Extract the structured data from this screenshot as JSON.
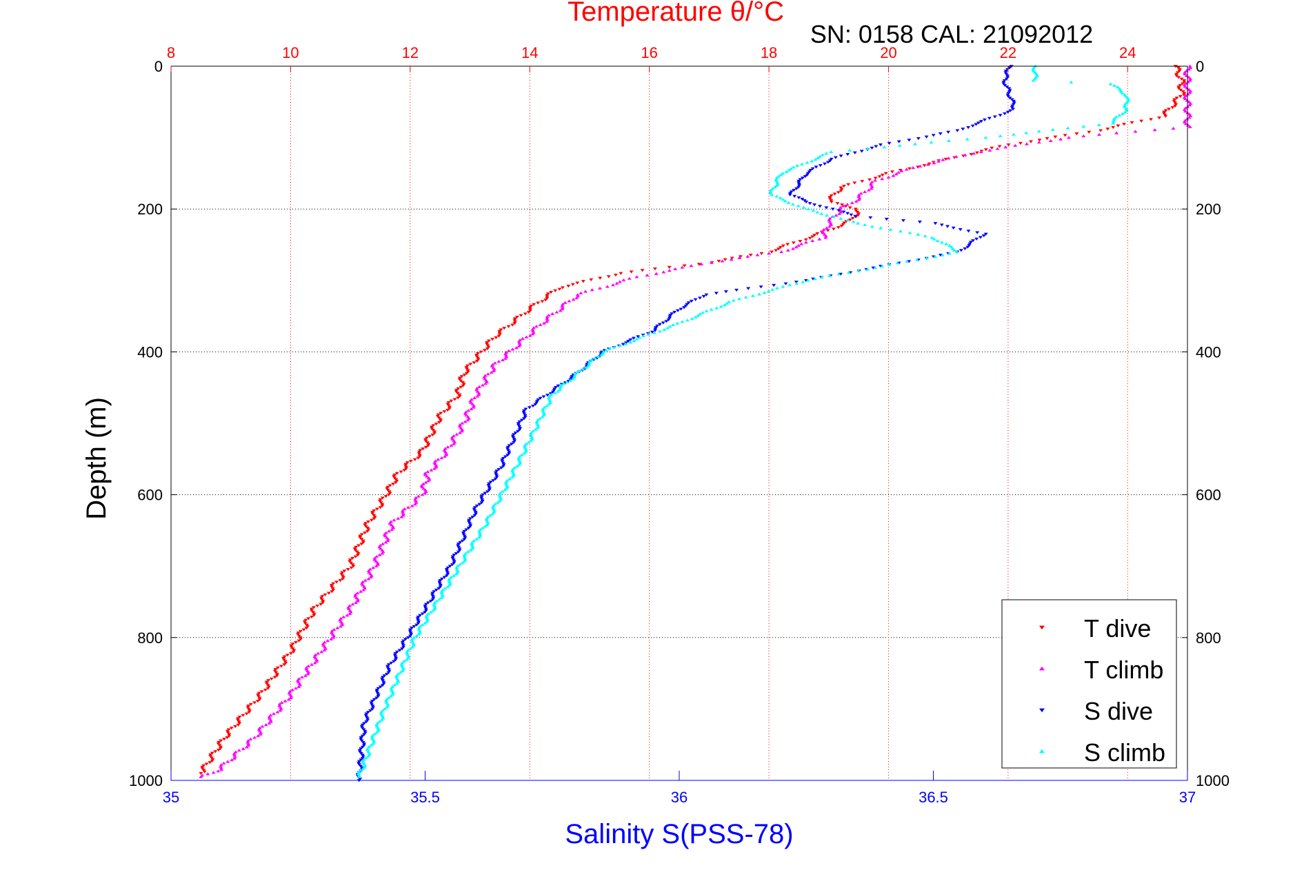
{
  "chart_data": {
    "type": "scatter",
    "title_top_axis": "Temperature θ/°C",
    "subtitle": "SN: 0158  CAL: 21092012",
    "ylabel": "Depth (m)",
    "xlabel_bottom": "Salinity S(PSS-78)",
    "y_axis": {
      "range": [
        0,
        1000
      ],
      "inverted": true,
      "ticks": [
        0,
        200,
        400,
        600,
        800,
        1000
      ],
      "tick_labels": [
        "0",
        "200",
        "400",
        "600",
        "800",
        "1000"
      ]
    },
    "top_axis": {
      "range": [
        8,
        25
      ],
      "ticks": [
        8,
        10,
        12,
        14,
        16,
        18,
        20,
        22,
        24
      ],
      "tick_labels": [
        "8",
        "10",
        "12",
        "14",
        "16",
        "18",
        "20",
        "22",
        "24"
      ],
      "color": "#ff0000",
      "grid": true
    },
    "bottom_axis": {
      "range": [
        35,
        37
      ],
      "ticks": [
        35,
        35.5,
        36,
        36.5,
        37
      ],
      "tick_labels": [
        "35",
        "35.5",
        "36",
        "36.5",
        "37"
      ],
      "color": "#0000ff"
    },
    "grid": true,
    "legend_position": "bottom-right",
    "series": [
      {
        "name": "T dive",
        "axis": "top",
        "marker": "triangle-down",
        "color": "#ff0000",
        "x": [
          24.8,
          24.9,
          24.9,
          24.7,
          24.6,
          23.5,
          22.0,
          21.0,
          20.0,
          19.2,
          19.0,
          19.5,
          19.4,
          19.0,
          18.5,
          18.0,
          17.0,
          15.5,
          14.5,
          14.0,
          13.7,
          13.4,
          13.2,
          12.9,
          12.8,
          12.5,
          12.2,
          11.8,
          11.6,
          11.3,
          11.0,
          10.4,
          10.0,
          9.5,
          8.9,
          8.5
        ],
        "y": [
          0,
          20,
          40,
          60,
          70,
          90,
          110,
          130,
          150,
          170,
          190,
          200,
          215,
          230,
          245,
          260,
          275,
          290,
          310,
          340,
          360,
          380,
          400,
          430,
          460,
          490,
          540,
          570,
          600,
          640,
          700,
          760,
          820,
          880,
          940,
          990
        ]
      },
      {
        "name": "T climb",
        "axis": "top",
        "marker": "triangle-up",
        "color": "#ff00ff",
        "x": [
          25.0,
          25.0,
          25.0,
          25.0,
          23.0,
          21.5,
          20.5,
          19.8,
          19.5,
          19.2,
          19.0,
          18.9,
          18.2,
          17.0,
          15.8,
          14.8,
          14.2,
          13.8,
          13.4,
          13.1,
          12.9,
          12.6,
          12.3,
          12.2,
          11.7,
          11.4,
          11.0,
          10.5,
          10.0,
          9.4,
          8.8,
          8.5
        ],
        "y": [
          0,
          20,
          50,
          85,
          100,
          120,
          140,
          160,
          185,
          200,
          220,
          240,
          260,
          275,
          295,
          320,
          360,
          390,
          420,
          460,
          500,
          540,
          570,
          600,
          640,
          700,
          760,
          820,
          880,
          940,
          985,
          995
        ]
      },
      {
        "name": "S dive",
        "axis": "bottom",
        "marker": "triangle-down",
        "color": "#0000ff",
        "x": [
          36.65,
          36.64,
          36.65,
          36.66,
          36.55,
          36.4,
          36.3,
          36.25,
          36.22,
          36.25,
          36.3,
          36.35,
          36.5,
          36.6,
          36.55,
          36.4,
          36.25,
          36.05,
          36.0,
          35.95,
          35.85,
          35.8,
          35.7,
          35.65,
          35.6,
          35.55,
          35.5,
          35.43,
          35.38,
          35.37
        ],
        "y": [
          0,
          20,
          40,
          60,
          90,
          110,
          130,
          150,
          180,
          190,
          200,
          210,
          220,
          235,
          260,
          280,
          300,
          320,
          340,
          370,
          400,
          430,
          480,
          560,
          620,
          700,
          760,
          840,
          920,
          1000
        ]
      },
      {
        "name": "S climb",
        "axis": "bottom",
        "marker": "triangle-up",
        "color": "#00ffff",
        "x": [
          36.7,
          36.7,
          36.85,
          36.88,
          36.88,
          36.85,
          36.6,
          36.3,
          36.2,
          36.18,
          36.25,
          36.35,
          36.5,
          36.55,
          36.4,
          36.25,
          36.1,
          36.0,
          35.85,
          35.75,
          35.68,
          35.62,
          35.55,
          35.48,
          35.42,
          35.37
        ],
        "y": [
          0,
          20,
          25,
          40,
          60,
          80,
          100,
          120,
          150,
          180,
          200,
          220,
          240,
          260,
          280,
          300,
          330,
          360,
          400,
          460,
          560,
          640,
          720,
          800,
          900,
          995
        ]
      }
    ],
    "legend": {
      "entries": [
        "T dive",
        "T climb",
        "S dive",
        "S climb"
      ]
    }
  }
}
